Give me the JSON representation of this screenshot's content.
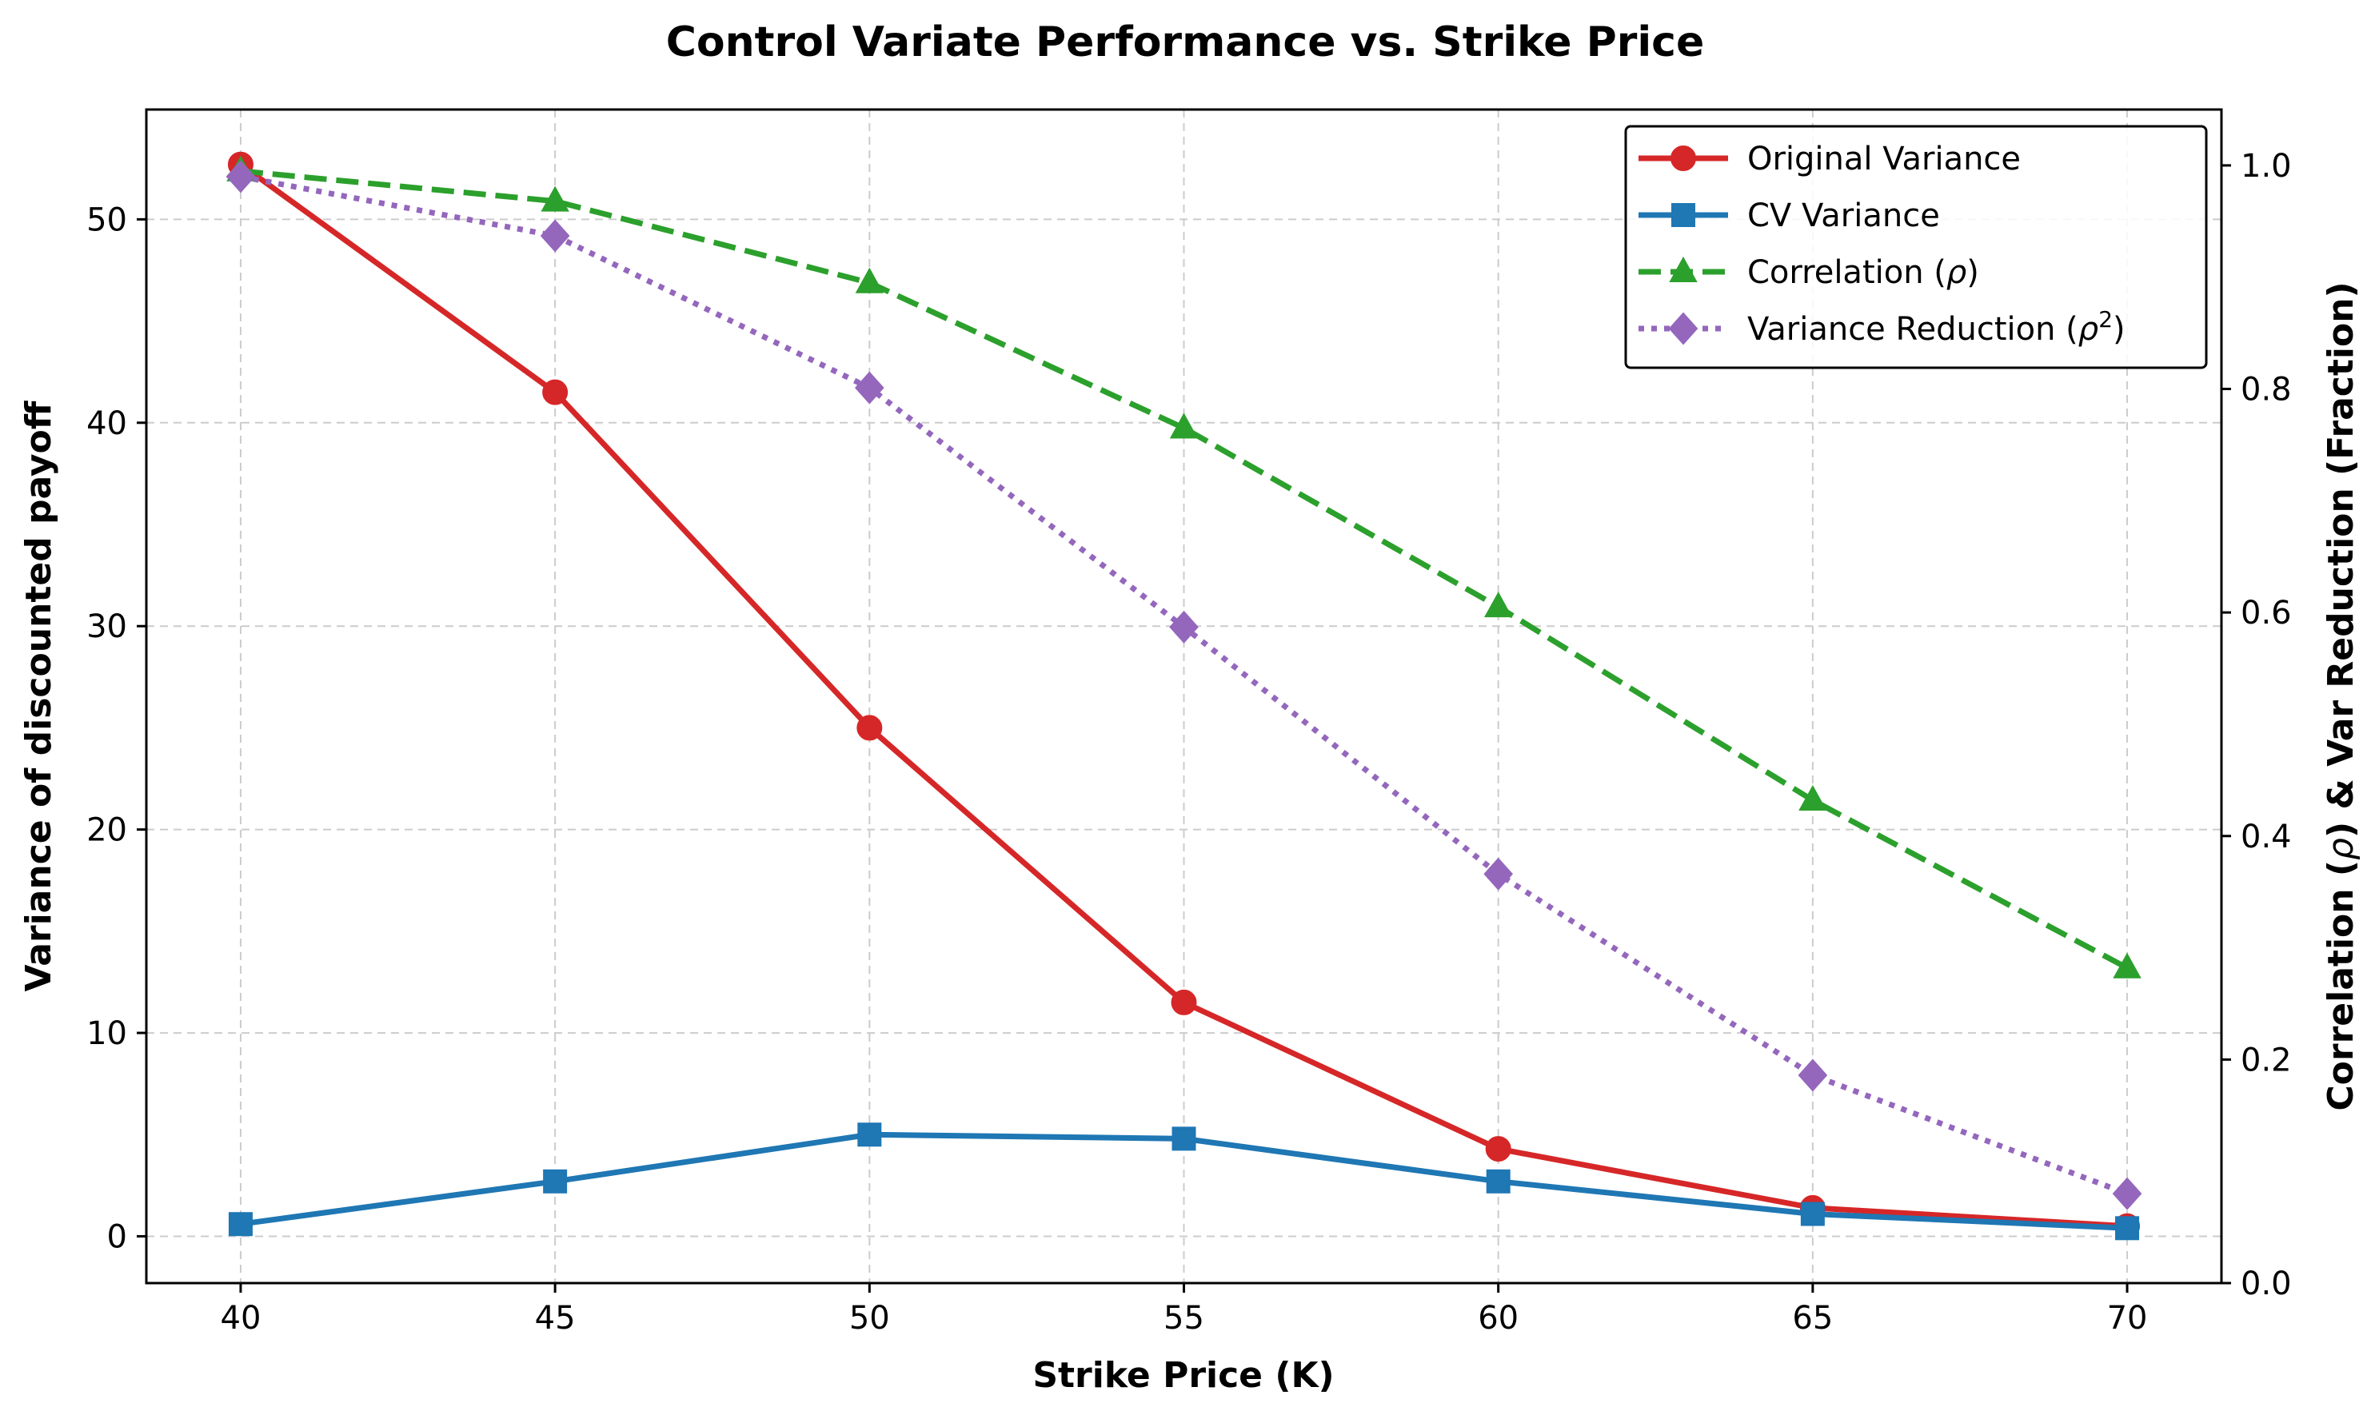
{
  "chart_data": {
    "type": "line",
    "title": "Control Variate Performance vs. Strike Price",
    "xlabel": "Strike Price (K)",
    "ylabel_left": "Variance of discounted payoff",
    "ylabel_right_parts": [
      "Correlation (",
      "ρ",
      ") & Var Reduction (Fraction)"
    ],
    "x": [
      40,
      45,
      50,
      55,
      60,
      65,
      70
    ],
    "xlim": [
      38.5,
      71.5
    ],
    "ylim_left": [
      -2.3,
      55.4
    ],
    "ylim_right": [
      0.0,
      1.05
    ],
    "x_ticks": [
      40,
      45,
      50,
      55,
      60,
      65,
      70
    ],
    "y_left_ticks": [
      0,
      10,
      20,
      30,
      40,
      50
    ],
    "y_right_ticks": [
      "0.0",
      "0.2",
      "0.4",
      "0.6",
      "0.8",
      "1.0"
    ],
    "grid": true,
    "legend_position": "top-right",
    "series": [
      {
        "name": "Original Variance",
        "legend_parts": [
          {
            "t": "Original Variance"
          }
        ],
        "axis": "left",
        "color": "#d62728",
        "marker": "circle",
        "line_style": "solid",
        "values": [
          52.7,
          41.5,
          25.0,
          11.5,
          4.3,
          1.4,
          0.5
        ]
      },
      {
        "name": "CV Variance",
        "legend_parts": [
          {
            "t": "CV Variance"
          }
        ],
        "axis": "left",
        "color": "#1f77b4",
        "marker": "square",
        "line_style": "solid",
        "values": [
          0.6,
          2.7,
          5.0,
          4.8,
          2.7,
          1.1,
          0.4
        ]
      },
      {
        "name": "Correlation (ρ)",
        "legend_parts": [
          {
            "t": "Correlation ("
          },
          {
            "t": "ρ",
            "italic": true
          },
          {
            "t": ")"
          }
        ],
        "axis": "right",
        "color": "#2ca02c",
        "marker": "triangle",
        "line_style": "dashed",
        "values": [
          0.995,
          0.968,
          0.895,
          0.765,
          0.605,
          0.432,
          0.282
        ]
      },
      {
        "name": "Variance Reduction (ρ2)",
        "legend_parts": [
          {
            "t": "Variance Reduction ("
          },
          {
            "t": "ρ",
            "italic": true
          },
          {
            "t": "2",
            "sup": true
          },
          {
            "t": ")"
          }
        ],
        "axis": "right",
        "color": "#9467bd",
        "marker": "diamond",
        "line_style": "dotted",
        "values": [
          0.99,
          0.937,
          0.801,
          0.587,
          0.366,
          0.186,
          0.08
        ]
      }
    ]
  }
}
